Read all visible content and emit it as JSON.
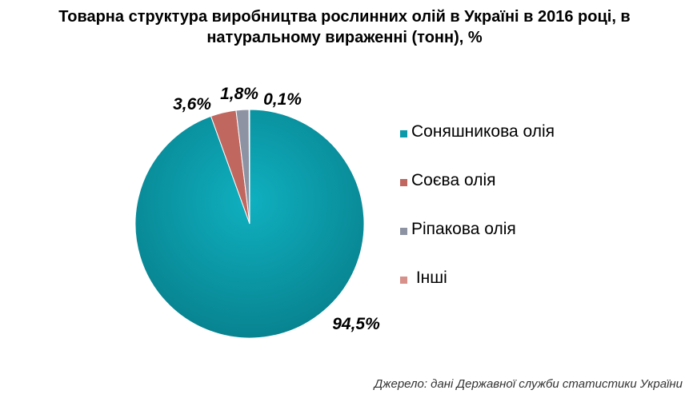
{
  "title": {
    "line1": "Товарна структура виробництва рослинних олій в Україні в 2016 році, в",
    "line2": "натуральному вираженні (тонн), %"
  },
  "chart_data": {
    "type": "pie",
    "title": "Товарна структура виробництва рослинних олій в Україні в 2016 році, в натуральному вираженні (тонн), %",
    "categories": [
      "Соняшникова олія",
      "Соєва олія",
      "Ріпакова олія",
      " Інші"
    ],
    "values": [
      94.5,
      3.6,
      1.8,
      0.1
    ],
    "data_labels": [
      "94,5%",
      "3,6%",
      "1,8%",
      "0,1%"
    ],
    "colors": [
      "#0a9aaa",
      "#c0675f",
      "#8d93a3",
      "#d7908a"
    ],
    "legend_position": "right"
  },
  "source": "Джерело: дані Державної служби статистики України"
}
